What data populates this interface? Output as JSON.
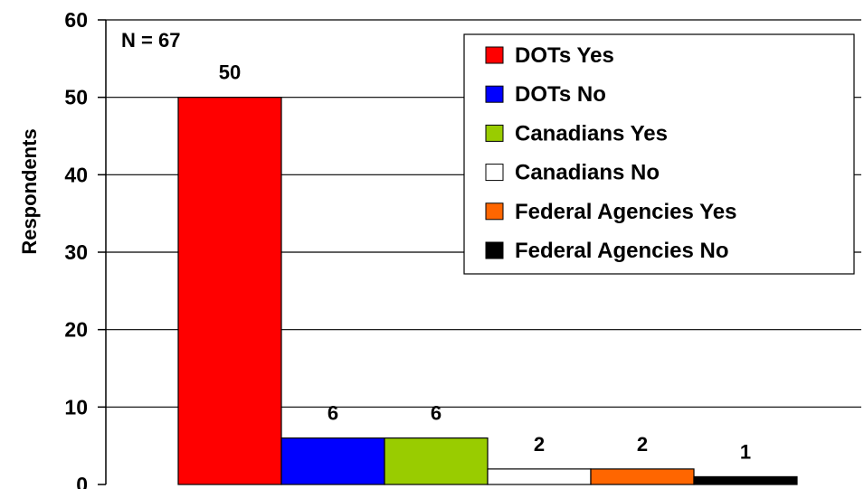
{
  "chart_data": {
    "type": "bar",
    "ylabel": "Respondents",
    "annotation": "N = 67",
    "ylim": [
      0,
      60
    ],
    "yticks": [
      0,
      10,
      20,
      30,
      40,
      50,
      60
    ],
    "grid": true,
    "legend_position": "top-right",
    "series": [
      {
        "name": "DOTs Yes",
        "value": 50,
        "color": "#ff0000"
      },
      {
        "name": "DOTs No",
        "value": 6,
        "color": "#0000ff"
      },
      {
        "name": "Canadians Yes",
        "value": 6,
        "color": "#99cc00"
      },
      {
        "name": "Canadians No",
        "value": 2,
        "color": "#ffffff"
      },
      {
        "name": "Federal Agencies Yes",
        "value": 2,
        "color": "#ff6600"
      },
      {
        "name": "Federal Agencies No",
        "value": 1,
        "color": "#000000"
      }
    ]
  }
}
